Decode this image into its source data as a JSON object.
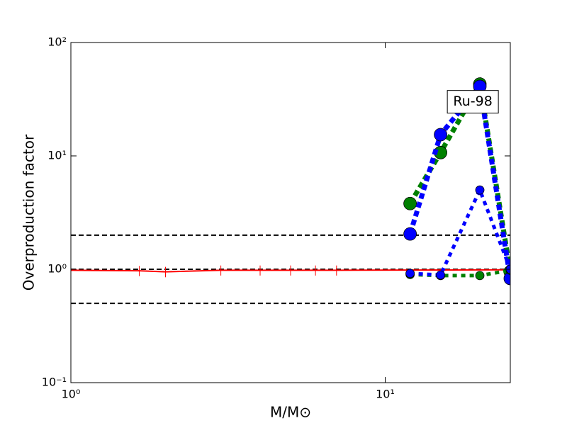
{
  "chart_data": {
    "type": "line",
    "xlabel": "M/M⊙",
    "ylabel": "Overproduction factor",
    "xscale": "log",
    "yscale": "log",
    "xlim": [
      1,
      25
    ],
    "ylim": [
      0.1,
      100
    ],
    "xticks": [
      {
        "value": 1,
        "label": "10⁰"
      },
      {
        "value": 10,
        "label": "10¹"
      }
    ],
    "yticks": [
      {
        "value": 0.1,
        "label": "10⁻¹"
      },
      {
        "value": 1,
        "label": "10⁰"
      },
      {
        "value": 10,
        "label": "10¹"
      },
      {
        "value": 100,
        "label": "10²"
      }
    ],
    "hlines": [
      0.5,
      1,
      2
    ],
    "hline_color": "#000000",
    "annotation": {
      "text": "Ru-98",
      "x": 19,
      "y": 30
    },
    "series": [
      {
        "color": "#ff0000",
        "linestyle": "solid",
        "marker": "none",
        "x": [
          1,
          1.65,
          2,
          3,
          4,
          5,
          6,
          7,
          25
        ],
        "values": [
          0.98,
          0.97,
          0.95,
          0.98,
          0.98,
          0.98,
          0.98,
          0.98,
          0.99
        ],
        "errors": [
          0.1,
          0.1,
          0.1,
          0.1,
          0.1,
          0.1,
          0.1,
          0.1,
          0.1
        ]
      },
      {
        "color": "#008000",
        "linestyle": "dotted-thick",
        "marker": "large",
        "x": [
          12,
          15,
          20,
          25
        ],
        "values": [
          3.8,
          10.7,
          43,
          0.95
        ]
      },
      {
        "color": "#0000ff",
        "linestyle": "dotted-thick",
        "marker": "large",
        "x": [
          12,
          15,
          20,
          25
        ],
        "values": [
          2.05,
          15.4,
          41,
          0.83
        ]
      },
      {
        "color": "#008000",
        "linestyle": "dotted-thin",
        "marker": "small",
        "x": [
          12,
          15,
          20,
          25
        ],
        "values": [
          0.9,
          0.88,
          0.88,
          0.98
        ]
      },
      {
        "color": "#0000ff",
        "linestyle": "dotted-thin",
        "marker": "small",
        "x": [
          12,
          15,
          20,
          25
        ],
        "values": [
          0.92,
          0.89,
          5.0,
          1.0
        ]
      }
    ]
  }
}
